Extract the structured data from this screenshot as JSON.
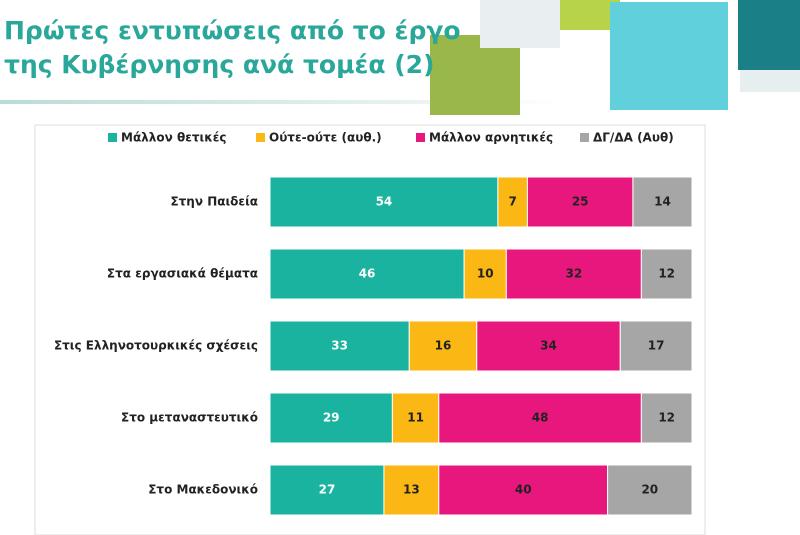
{
  "chart_data": {
    "type": "stacked_barh",
    "title": [
      "Πρώτες εντυπώσεις από το έργο",
      "της Κυβέρνησης ανά τομέα (2)"
    ],
    "categories": [
      "Στην Παιδεία",
      "Στα εργασιακά θέματα",
      "Στις Ελληνοτουρκικές σχέσεις",
      "Στο μεταναστευτικό",
      "Στο Μακεδονικό"
    ],
    "series": [
      {
        "name": "Μάλλον θετικές",
        "color": "#1ab3a0",
        "values": [
          54,
          46,
          33,
          29,
          27
        ]
      },
      {
        "name": "Ούτε-ούτε  (αυθ.)",
        "color": "#fbb714",
        "values": [
          7,
          10,
          16,
          11,
          13
        ]
      },
      {
        "name": "Μάλλον αρνητικές",
        "color": "#e8177d",
        "values": [
          25,
          32,
          34,
          48,
          40
        ]
      },
      {
        "name": "ΔΓ/ΔΑ (Αυθ)",
        "color": "#a6a6a6",
        "values": [
          14,
          12,
          17,
          12,
          20
        ]
      }
    ],
    "xlim": [
      0,
      100
    ],
    "legend": "top"
  }
}
